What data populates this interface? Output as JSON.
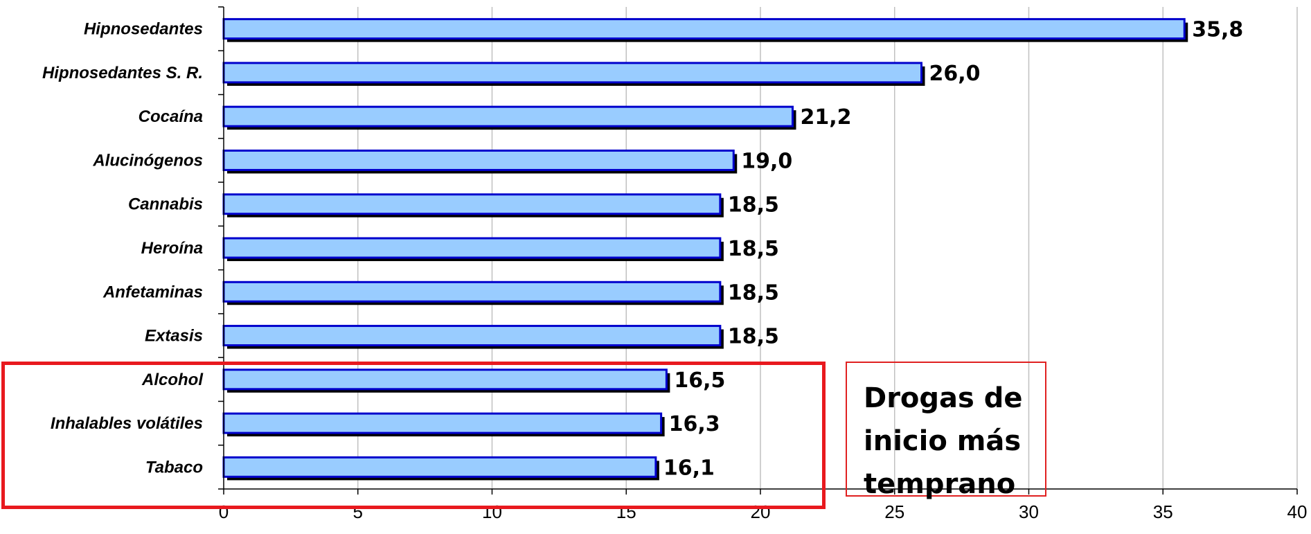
{
  "chart_data": {
    "type": "bar",
    "orientation": "horizontal",
    "categories": [
      "Hipnosedantes",
      "Hipnosedantes S. R.",
      "Cocaína",
      "Alucinógenos",
      "Cannabis",
      "Heroína",
      "Anfetaminas",
      "Extasis",
      "Alcohol",
      "Inhalables volátiles",
      "Tabaco"
    ],
    "values": [
      35.8,
      26.0,
      21.2,
      19.0,
      18.5,
      18.5,
      18.5,
      18.5,
      16.5,
      16.3,
      16.1
    ],
    "value_labels": [
      "35,8",
      "26,0",
      "21,2",
      "19,0",
      "18,5",
      "18,5",
      "18,5",
      "18,5",
      "16,5",
      "16,3",
      "16,1"
    ],
    "xlim": [
      0,
      40
    ],
    "xticks": [
      0,
      5,
      10,
      15,
      20,
      25,
      30,
      35,
      40
    ],
    "grid": "vertical",
    "bar_color": "#99ccff",
    "bar_edge_color": "#0000cc",
    "highlight_color": "#e8191e",
    "highlighted_categories": [
      "Alcohol",
      "Inhalables volátiles",
      "Tabaco"
    ],
    "annotation": [
      "Drogas de",
      "inicio más",
      "temprano"
    ]
  }
}
